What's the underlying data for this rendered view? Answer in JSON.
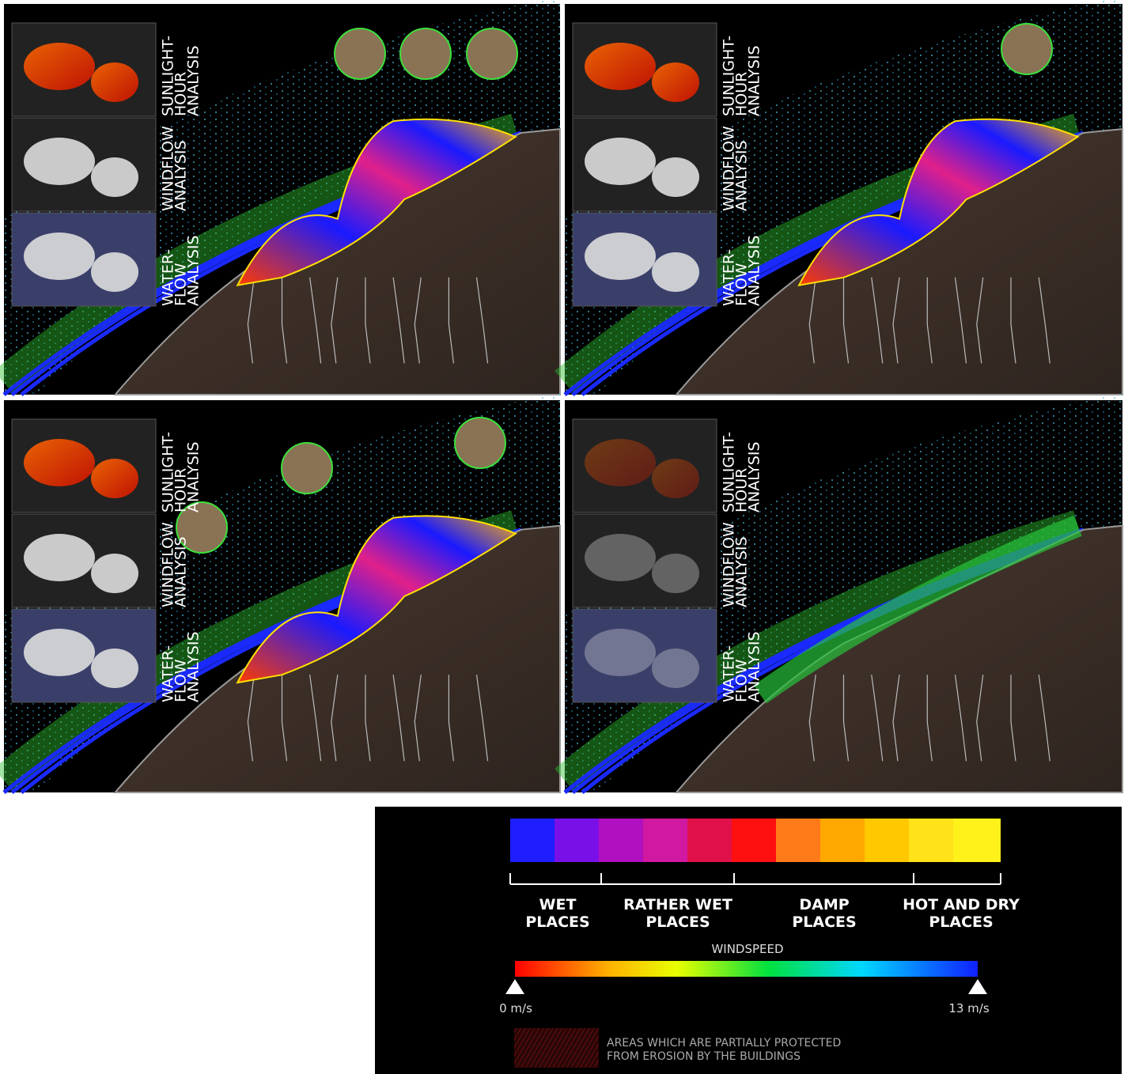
{
  "panels": [
    {
      "insets": [
        {
          "label": [
            "SUNLIGHT-",
            "HOUR",
            "ANALYSIS"
          ]
        },
        {
          "label": [
            "WINDFLOW",
            "ANALYSIS"
          ]
        },
        {
          "label": [
            "WATER-",
            "FLOW",
            "ANALYSIS"
          ]
        }
      ]
    },
    {
      "insets": [
        {
          "label": [
            "SUNLIGHT-",
            "HOUR",
            "ANALYSIS"
          ]
        },
        {
          "label": [
            "WINDFLOW",
            "ANALYSIS"
          ]
        },
        {
          "label": [
            "WATER-",
            "FLOW",
            "ANALYSIS"
          ]
        }
      ]
    },
    {
      "insets": [
        {
          "label": [
            "SUNLIGHT-",
            "HOUR",
            "ANALYSIS"
          ]
        },
        {
          "label": [
            "WINDFLOW",
            "ANALYSIS"
          ]
        },
        {
          "label": [
            "WATER-",
            "FLOW",
            "ANALYSIS"
          ]
        }
      ]
    },
    {
      "insets": [
        {
          "label": [
            "SUNLIGHT-",
            "HOUR",
            "ANALYSIS"
          ]
        },
        {
          "label": [
            "WINDFLOW",
            "ANALYSIS"
          ]
        },
        {
          "label": [
            "WATER-",
            "FLOW",
            "ANALYSIS"
          ]
        }
      ]
    }
  ],
  "legend": {
    "zones": [
      {
        "label": [
          "WET",
          "PLACES"
        ]
      },
      {
        "label": [
          "RATHER WET",
          "PLACES"
        ]
      },
      {
        "label": [
          "DAMP",
          "PLACES"
        ]
      },
      {
        "label": [
          "HOT AND DRY",
          "PLACES"
        ]
      }
    ],
    "windspeed": {
      "title": "WINDSPEED",
      "min": "0 m/s",
      "max": "13 m/s"
    },
    "note": [
      "AREAS WHICH ARE PARTIALLY PROTECTED",
      "FROM EROSION BY THE BUILDINGS"
    ]
  }
}
